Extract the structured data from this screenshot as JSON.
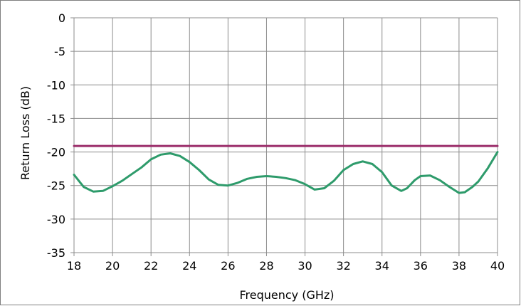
{
  "chart_data": {
    "type": "line",
    "title": "",
    "xlabel": "Frequency (GHz)",
    "ylabel": "Return Loss (dB)",
    "xlim": [
      18,
      40
    ],
    "ylim": [
      -35,
      0
    ],
    "xticks": [
      18,
      20,
      22,
      24,
      26,
      28,
      30,
      32,
      34,
      36,
      38,
      40
    ],
    "yticks": [
      0,
      -5,
      -10,
      -15,
      -20,
      -25,
      -30,
      -35
    ],
    "grid": true,
    "legend": "none",
    "series": [
      {
        "color": "#2e9b6b",
        "x": [
          18,
          18.5,
          19,
          19.5,
          20,
          20.5,
          21,
          21.5,
          22,
          22.5,
          23,
          23.5,
          24,
          24.5,
          25,
          25.5,
          26,
          26.5,
          27,
          27.5,
          28,
          28.5,
          29,
          29.5,
          30,
          30.5,
          31,
          31.5,
          32,
          32.5,
          33,
          33.5,
          34,
          34.5,
          35,
          35.3,
          35.7,
          36,
          36.5,
          37,
          37.5,
          38,
          38.3,
          38.7,
          39,
          39.5,
          40
        ],
        "y": [
          -23.4,
          -25.2,
          -25.9,
          -25.8,
          -25.1,
          -24.3,
          -23.3,
          -22.3,
          -21.1,
          -20.4,
          -20.2,
          -20.6,
          -21.5,
          -22.7,
          -24.1,
          -24.9,
          -25.0,
          -24.6,
          -24.0,
          -23.7,
          -23.6,
          -23.7,
          -23.9,
          -24.2,
          -24.8,
          -25.6,
          -25.4,
          -24.3,
          -22.7,
          -21.8,
          -21.4,
          -21.8,
          -23.0,
          -25.0,
          -25.8,
          -25.4,
          -24.2,
          -23.6,
          -23.5,
          -24.2,
          -25.2,
          -26.1,
          -26.0,
          -25.2,
          -24.4,
          -22.4,
          -20.0
        ]
      },
      {
        "color": "#9b2d6a",
        "x": [
          18,
          40
        ],
        "y": [
          -19.1,
          -19.1
        ]
      }
    ]
  }
}
